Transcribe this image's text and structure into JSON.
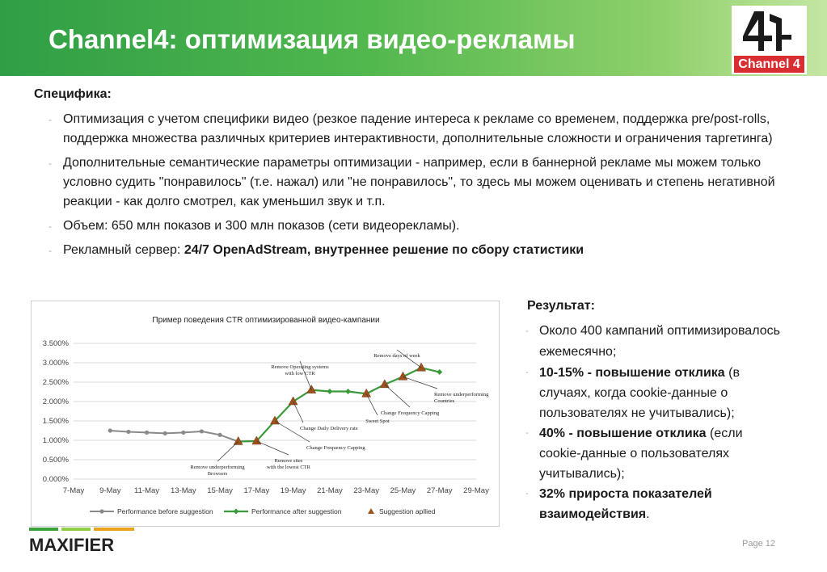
{
  "header": {
    "title": "Channel4: оптимизация видео-рекламы"
  },
  "logo": {
    "text": "Channel 4",
    "glyph": "4"
  },
  "specifics": {
    "title": "Специфика:",
    "bullets": [
      {
        "text": "Оптимизация с учетом  специфики видео  (резкое падение интереса к рекламе со временем, поддержка pre/post-rolls, поддержка множества различных критериев интерактивности, дополнительные сложности и ограничения таргетинга)"
      },
      {
        "text": "Дополнительные семантические параметры оптимизации - например, если в баннерной рекламе мы можем только условно судить \"понравилось\" (т.е. нажал) или \"не понравилось\", то здесь мы можем оценивать и степень негативной реакции - как долго смотрел, как уменьшил звук и т.п."
      },
      {
        "text": "Объем: 650 млн показов и 300 млн показов (сети видеорекламы)."
      },
      {
        "prefix": "Рекламный сервер: ",
        "bold": "24/7 OpenAdStream, внутреннее решение по сбору статистики"
      }
    ]
  },
  "results": {
    "title": "Результат:",
    "items": [
      {
        "text": "Около 400 кампаний оптимизировалось ежемесячно;"
      },
      {
        "bold": "10-15% - повышение отклика",
        "text": " (в случаях, когда cookie-данные о пользователях не учитывались);"
      },
      {
        "bold": " 40% - повышение отклика",
        "text": " (если cookie-данные о пользователях учитывались);"
      },
      {
        "bold": "32% прироста показателей взаимодействия",
        "text": "."
      }
    ]
  },
  "footer": {
    "brand": "MAXIFIER",
    "page": "Page 12"
  },
  "chart_data": {
    "type": "line",
    "title": "Пример поведения CTR оптимизированной видео-кампании",
    "x_ticks": [
      "7-May",
      "9-May",
      "11-May",
      "13-May",
      "15-May",
      "17-May",
      "19-May",
      "21-May",
      "23-May",
      "25-May",
      "27-May",
      "29-May"
    ],
    "y_ticks": [
      "0.000%",
      "0.500%",
      "1.000%",
      "1.500%",
      "2.000%",
      "2.500%",
      "3.000%",
      "3.500%"
    ],
    "ylim": [
      0,
      3.5
    ],
    "xlim": [
      7,
      29
    ],
    "y_unit": "%",
    "series": [
      {
        "name": "Performance before suggestion",
        "color": "#8a8a8a",
        "x": [
          9,
          10,
          11,
          12,
          13,
          14,
          15,
          16,
          17
        ],
        "y": [
          1.25,
          1.22,
          1.2,
          1.18,
          1.2,
          1.23,
          1.14,
          0.97,
          0.98
        ]
      },
      {
        "name": "Performance after suggestion",
        "color": "#3a9a3a",
        "x": [
          16,
          17,
          18,
          19,
          20,
          21,
          22,
          23,
          24,
          25,
          26,
          27
        ],
        "y": [
          0.97,
          0.98,
          1.5,
          2.0,
          2.3,
          2.26,
          2.26,
          2.2,
          2.44,
          2.64,
          2.87,
          2.76
        ]
      }
    ],
    "markers": {
      "name": "Suggestion apllied",
      "color": "#a0521d",
      "x": [
        16,
        17,
        18,
        19,
        20,
        23,
        24,
        25,
        26
      ],
      "y": [
        0.97,
        0.98,
        1.5,
        2.0,
        2.3,
        2.2,
        2.44,
        2.64,
        2.87
      ]
    },
    "annotations": [
      {
        "lines": [
          "Remove underperforming",
          "Browsers"
        ]
      },
      {
        "lines": [
          "Remove sites",
          "with the lowest CTR"
        ]
      },
      {
        "lines": [
          "Change Frequency Capping"
        ]
      },
      {
        "lines": [
          "Change Daily Delivery rate"
        ]
      },
      {
        "lines": [
          "Remove Operating systems",
          "with low CTR"
        ]
      },
      {
        "lines": [
          "Sweet Spot"
        ]
      },
      {
        "lines": [
          "Change Frequency Capping"
        ]
      },
      {
        "lines": [
          "Remove underperforming",
          "Countries"
        ]
      },
      {
        "lines": [
          "Remove days of week"
        ]
      }
    ],
    "grid": true,
    "legend_position": "bottom"
  }
}
